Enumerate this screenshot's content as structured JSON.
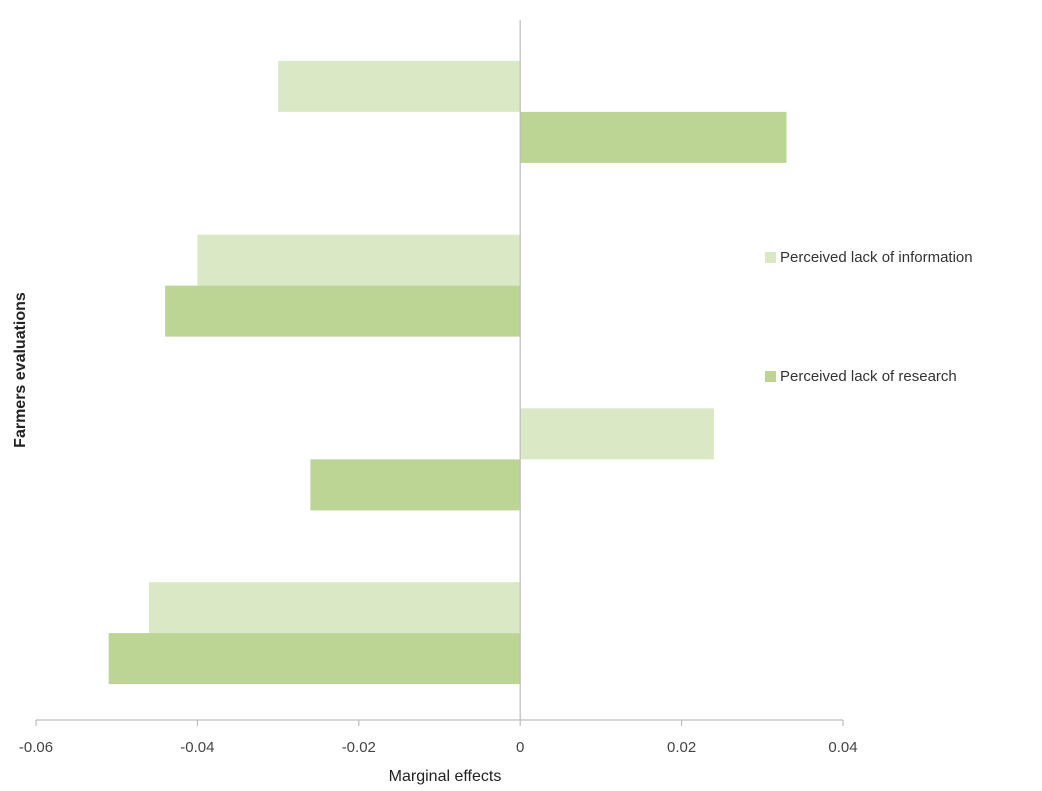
{
  "chart_data": {
    "type": "bar",
    "orientation": "horizontal",
    "xlabel": "Marginal effects",
    "ylabel": "Farmers evaluations",
    "xlim": [
      -0.06,
      0.04
    ],
    "xticks": [
      -0.06,
      -0.04,
      -0.02,
      0,
      0.02,
      0.04
    ],
    "xtick_labels": [
      "-0.06",
      "-0.04",
      "-0.02",
      "0",
      "0.02",
      "0.04"
    ],
    "grid": false,
    "legend_position": "right",
    "groups": 4,
    "series": [
      {
        "name": "Perceived lack of information",
        "color": "#dbe8c6",
        "values": [
          -0.03,
          -0.04,
          0.024,
          -0.046
        ]
      },
      {
        "name": "Perceived lack of research",
        "color": "#bcd494",
        "values": [
          0.033,
          -0.044,
          -0.026,
          -0.051
        ]
      }
    ]
  }
}
